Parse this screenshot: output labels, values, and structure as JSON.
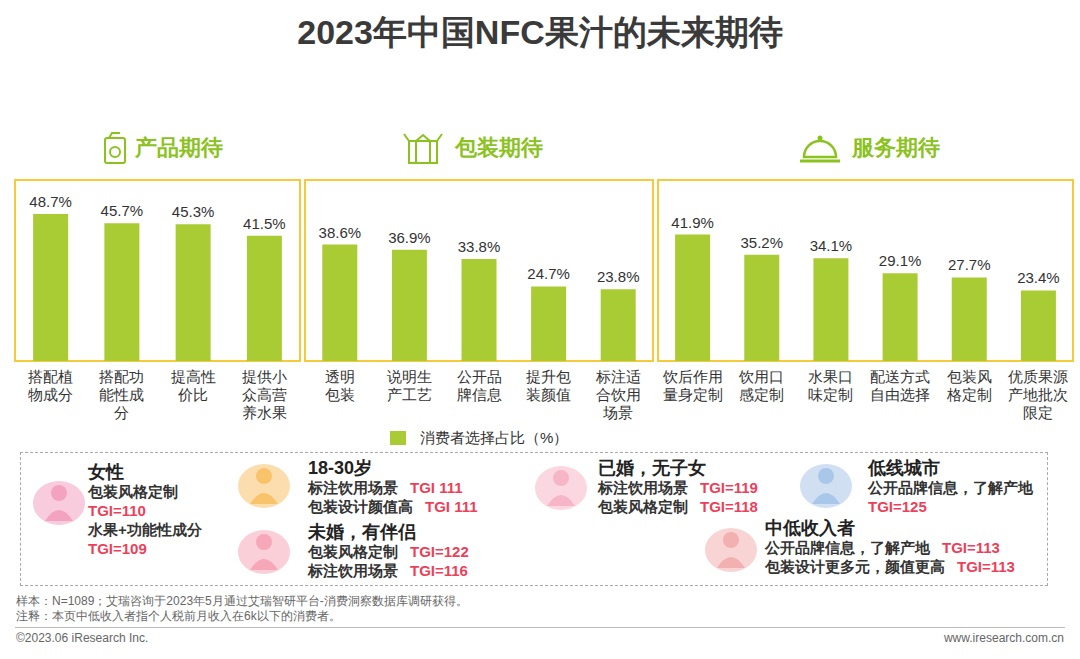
{
  "title": "2023年中国NFC果汁的未来期待",
  "chart_data": [
    {
      "type": "bar",
      "title": "产品期待",
      "categories": [
        "搭配植物成分",
        "搭配功能性成分",
        "提高性价比",
        "提供小众高营养水果"
      ],
      "series": [
        {
          "name": "消费者选择占比（%）",
          "color": "#a9cc35",
          "values": [
            48.7,
            45.7,
            45.3,
            41.5
          ],
          "value_labels": [
            "48.7%",
            "45.7%",
            "45.3%",
            "41.5%"
          ]
        }
      ],
      "ylim": [
        0,
        60
      ],
      "data_labels": true,
      "tick_labels": "x"
    },
    {
      "type": "bar",
      "title": "包装期待",
      "categories": [
        "透明包装",
        "说明生产工艺",
        "公开品牌信息",
        "提升包装颜值",
        "标注适合饮用场景"
      ],
      "series": [
        {
          "name": "消费者选择占比（%）",
          "color": "#a9cc35",
          "values": [
            38.6,
            36.9,
            33.8,
            24.7,
            23.8
          ],
          "value_labels": [
            "38.6%",
            "36.9%",
            "33.8%",
            "24.7%",
            "23.8%"
          ]
        }
      ],
      "ylim": [
        0,
        60
      ],
      "data_labels": true,
      "tick_labels": "x",
      "legend": "bottom"
    },
    {
      "type": "bar",
      "title": "服务期待",
      "categories": [
        "饮后作用量身定制",
        "饮用口感定制",
        "水果口味定制",
        "配送方式自由选择",
        "包装风格定制",
        "优质果源产地批次限定"
      ],
      "series": [
        {
          "name": "消费者选择占比（%）",
          "color": "#a9cc35",
          "values": [
            41.9,
            35.2,
            34.1,
            29.1,
            27.7,
            23.4
          ],
          "value_labels": [
            "41.9%",
            "35.2%",
            "34.1%",
            "29.1%",
            "27.7%",
            "23.4%"
          ]
        }
      ],
      "ylim": [
        0,
        60
      ],
      "data_labels": true,
      "tick_labels": "x"
    }
  ],
  "personas": [
    {
      "heading": "女性",
      "items": [
        {
          "text": "包装风格定制",
          "tgi": "TGI=110"
        },
        {
          "text": "水果+功能性成分",
          "tgi": "TGI=109"
        }
      ]
    },
    {
      "heading": "18-30岁",
      "items": [
        {
          "text": "标注饮用场景",
          "tgi": "TGI 111"
        },
        {
          "text": "包装设计颜值高",
          "tgi": "TGI 111"
        }
      ]
    },
    {
      "heading": "未婚，有伴侣",
      "items": [
        {
          "text": "包装风格定制",
          "tgi": "TGI=122"
        },
        {
          "text": "标注饮用场景",
          "tgi": "TGI=116"
        }
      ]
    },
    {
      "heading": "已婚，无子女",
      "items": [
        {
          "text": "标注饮用场景",
          "tgi": "TGI=119"
        },
        {
          "text": "包装风格定制",
          "tgi": "TGI=118"
        }
      ]
    },
    {
      "heading": "低线城市",
      "items": [
        {
          "text": "公开品牌信息，了解产地",
          "tgi": "TGI=125"
        }
      ]
    },
    {
      "heading": "中低收入者",
      "items": [
        {
          "text": "公开品牌信息，了解产地",
          "tgi": "TGI=113"
        },
        {
          "text": "包装设计更多元，颜值更高",
          "tgi": "TGI=113"
        }
      ]
    }
  ],
  "notes": [
    "样本：N=1089；艾瑞咨询于2023年5月通过艾瑞智研平台-消费洞察数据库调研获得。",
    "注释：本页中低收入者指个人税前月收入在6k以下的消费者。"
  ],
  "copyright": "©2023.06 iResearch Inc.",
  "website": "www.iresearch.com.cn"
}
